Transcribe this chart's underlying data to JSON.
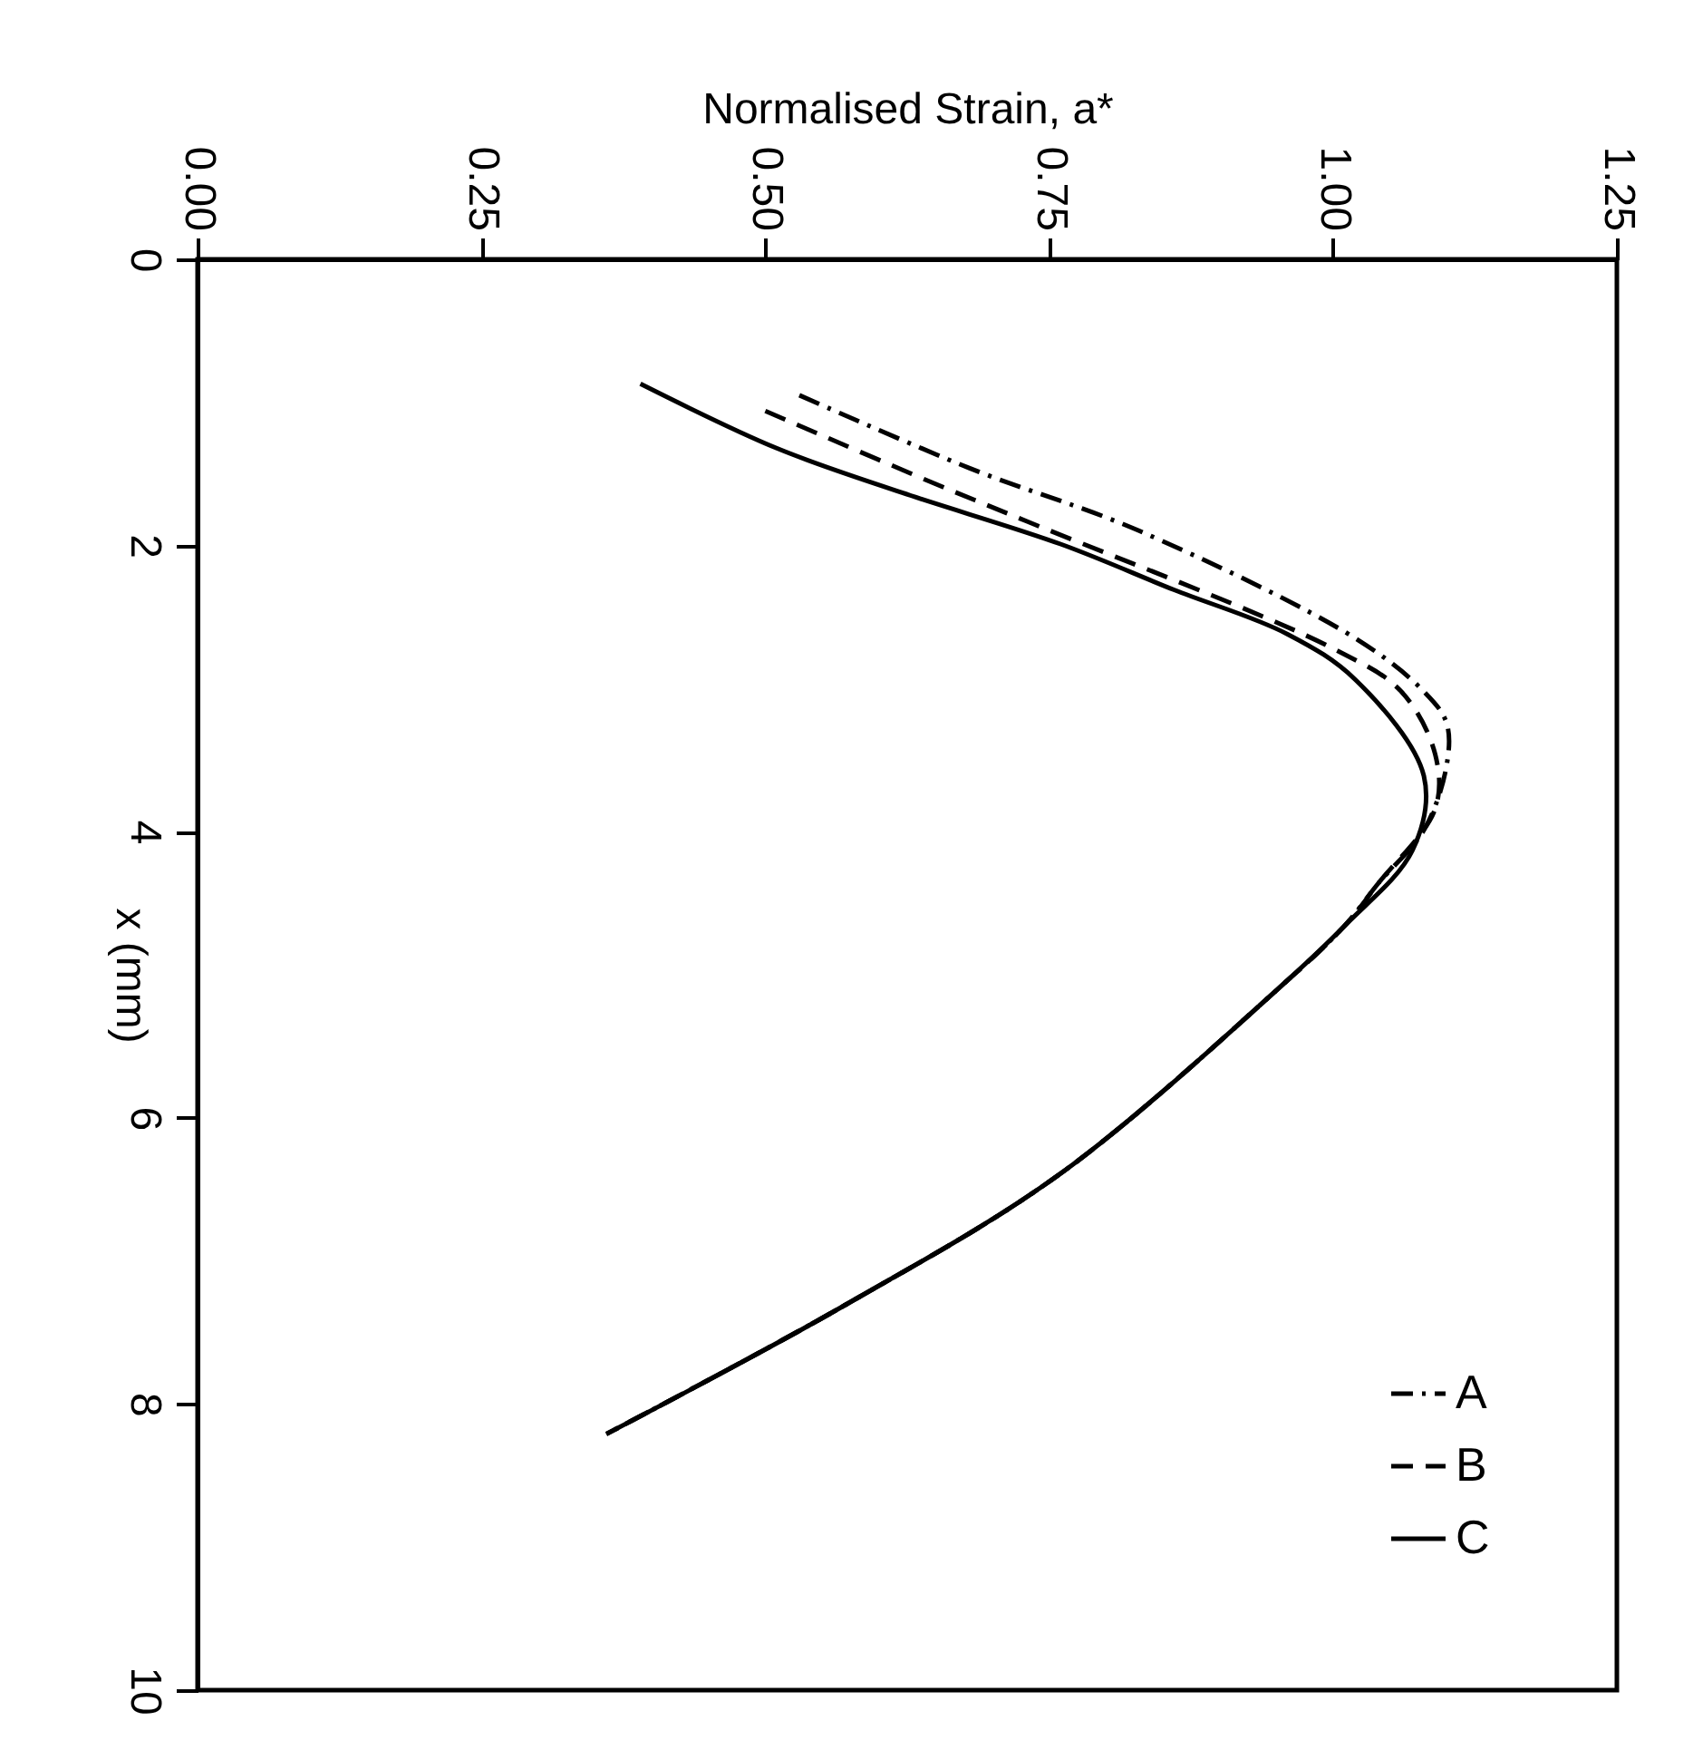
{
  "chart_data": {
    "type": "line",
    "xlabel": "Normalised Strain, a*",
    "ylabel": "x (mm)",
    "xlim": [
      0,
      1.25
    ],
    "xticks": [
      {
        "value": 0,
        "label": "0.00"
      },
      {
        "value": 0.25,
        "label": "0.25"
      },
      {
        "value": 0.5,
        "label": "0.50"
      },
      {
        "value": 0.75,
        "label": "0.75"
      },
      {
        "value": 1,
        "label": "1.00"
      },
      {
        "value": 1.25,
        "label": "1.25"
      }
    ],
    "ylim": [
      10,
      0
    ],
    "yticks": [
      0,
      2,
      4,
      6,
      8,
      10
    ],
    "grid": false,
    "legend": "bottom right",
    "series": [
      {
        "name": "A",
        "color": "#000000",
        "line_style": "dashdot",
        "x": [
          0.53,
          0.68,
          0.83,
          1.02,
          1.08,
          1.1,
          1.1,
          1.08,
          1.04,
          1.01,
          0.95,
          0.76,
          0.57,
          0.36
        ],
        "values": [
          0.95,
          1.46,
          1.9,
          2.65,
          3.02,
          3.24,
          3.54,
          3.99,
          4.36,
          4.66,
          5.11,
          6.39,
          7.31,
          8.21
        ]
      },
      {
        "name": "B",
        "color": "#000000",
        "line_style": "dashed",
        "x": [
          0.5,
          0.65,
          0.73,
          1.0,
          1.06,
          1.09,
          1.09,
          1.04,
          1.01,
          0.95,
          0.76,
          0.57,
          0.36
        ],
        "values": [
          1.06,
          1.57,
          1.83,
          2.72,
          3.02,
          3.46,
          3.84,
          4.36,
          4.66,
          5.11,
          6.39,
          7.31,
          8.21
        ]
      },
      {
        "name": "C",
        "color": "#000000",
        "line_style": "solid",
        "x": [
          0.39,
          0.51,
          0.62,
          0.76,
          0.86,
          0.96,
          1.02,
          1.08,
          1.07,
          1.01,
          0.95,
          0.76,
          0.57,
          0.36
        ],
        "values": [
          0.87,
          1.32,
          1.63,
          1.99,
          2.31,
          2.62,
          2.94,
          3.61,
          4.13,
          4.66,
          5.11,
          6.39,
          7.31,
          8.21
        ]
      }
    ]
  }
}
